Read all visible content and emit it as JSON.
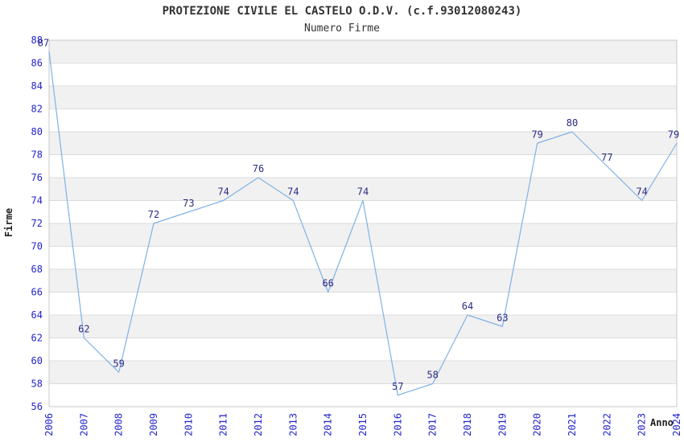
{
  "header": {
    "title": "PROTEZIONE CIVILE EL CASTELO O.D.V. (c.f.93012080243)",
    "subtitle": "Numero Firme"
  },
  "chart_data": {
    "type": "line",
    "title": "PROTEZIONE CIVILE EL CASTELO O.D.V. (c.f.93012080243)",
    "subtitle": "Numero Firme",
    "xlabel": "Anno",
    "ylabel": "Firme",
    "x": [
      "2006",
      "2007",
      "2008",
      "2009",
      "2010",
      "2011",
      "2012",
      "2013",
      "2014",
      "2015",
      "2016",
      "2017",
      "2018",
      "2019",
      "2020",
      "2021",
      "2022",
      "2023",
      "2024"
    ],
    "series": [
      {
        "name": "Numero Firme",
        "values": [
          87,
          62,
          59,
          72,
          73,
          74,
          76,
          74,
          66,
          74,
          57,
          58,
          64,
          63,
          79,
          80,
          77,
          74,
          79
        ]
      }
    ],
    "ylim": [
      56,
      88
    ],
    "ytick_step": 2,
    "point_labels_visible": true,
    "grid": "horizontal-alternating-bands",
    "legend_position": "none",
    "colors": {
      "line": "#7FB2E5",
      "tick_label": "#2424CC",
      "point_label": "#2B2B85",
      "band_fill": "#F1F1F1",
      "grid_line": "#DCDCDC",
      "plot_border": "#C8C8C8",
      "title_text": "#333333"
    }
  }
}
